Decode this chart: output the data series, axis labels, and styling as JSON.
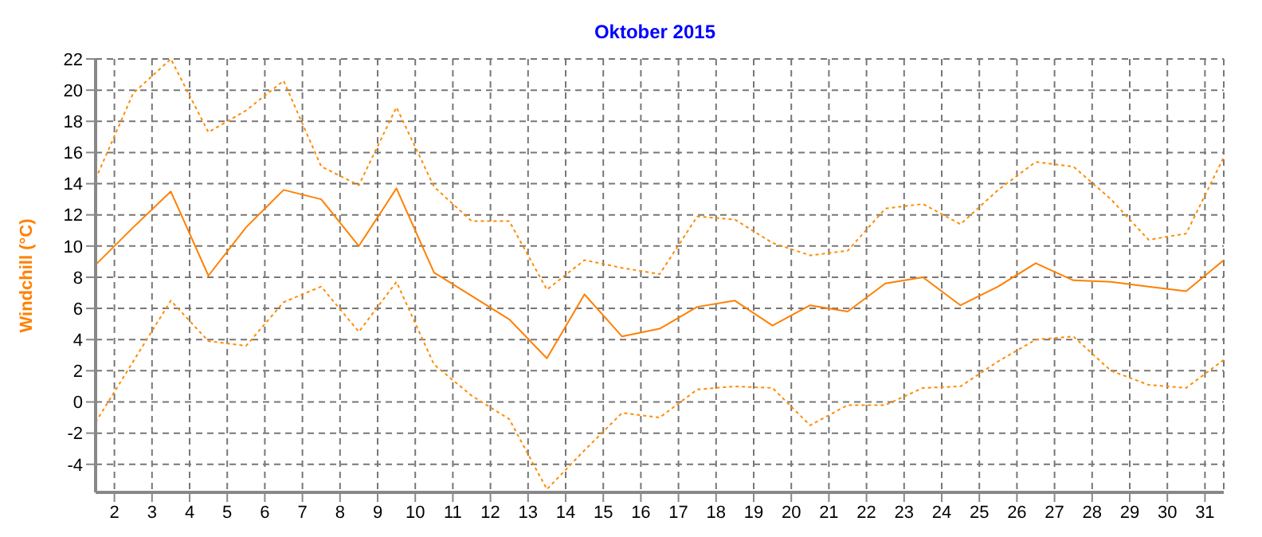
{
  "chart_data": {
    "type": "line",
    "title": "Oktober 2015",
    "ylabel": "Windchill  (°C)",
    "x": [
      1.5,
      2.5,
      3.5,
      4.5,
      5.5,
      6.5,
      7.5,
      8.5,
      9.5,
      10.5,
      11.5,
      12.5,
      13.5,
      14.5,
      15.5,
      16.5,
      17.5,
      18.5,
      19.5,
      20.5,
      21.5,
      22.5,
      23.5,
      24.5,
      25.5,
      26.5,
      27.5,
      28.5,
      29.5,
      30.5,
      31.5
    ],
    "series": [
      {
        "color": "#ff8c00",
        "line_style": "dotted",
        "values": [
          14.3,
          19.8,
          22.0,
          17.3,
          18.7,
          20.6,
          15.1,
          13.9,
          18.9,
          13.8,
          11.6,
          11.6,
          7.2,
          9.1,
          8.6,
          8.2,
          11.9,
          11.7,
          10.2,
          9.4,
          9.7,
          12.4,
          12.7,
          11.4,
          13.6,
          15.4,
          15.1,
          13.0,
          10.4,
          10.8,
          15.7
        ]
      },
      {
        "color": "#ff8000",
        "line_style": "solid",
        "values": [
          8.8,
          11.2,
          13.5,
          8.1,
          11.2,
          13.6,
          13.0,
          10.0,
          13.7,
          8.3,
          6.8,
          5.3,
          2.8,
          6.9,
          4.2,
          4.7,
          6.1,
          6.5,
          4.9,
          6.2,
          5.8,
          7.6,
          8.0,
          6.2,
          7.4,
          8.9,
          7.8,
          7.7,
          7.4,
          7.1,
          9.1
        ]
      },
      {
        "color": "#ff8c00",
        "line_style": "dotted",
        "values": [
          -1.3,
          2.6,
          6.5,
          3.9,
          3.6,
          6.4,
          7.4,
          4.5,
          7.7,
          2.4,
          0.4,
          -1.1,
          -5.6,
          -3.1,
          -0.7,
          -1.0,
          0.8,
          1.0,
          0.9,
          -1.5,
          -0.2,
          -0.2,
          0.9,
          1.0,
          2.6,
          4.0,
          4.2,
          2.0,
          1.1,
          0.9,
          2.7
        ]
      }
    ],
    "xlim": [
      1.5,
      31.5
    ],
    "xticks": [
      2,
      3,
      4,
      5,
      6,
      7,
      8,
      9,
      10,
      11,
      12,
      13,
      14,
      15,
      16,
      17,
      18,
      19,
      20,
      21,
      22,
      23,
      24,
      25,
      26,
      27,
      28,
      29,
      30,
      31
    ],
    "ylim": [
      -5.8,
      22
    ],
    "yticks": [
      -4,
      -2,
      0,
      2,
      4,
      6,
      8,
      10,
      12,
      14,
      16,
      18,
      20,
      22
    ],
    "grid": true,
    "marker": "none"
  }
}
